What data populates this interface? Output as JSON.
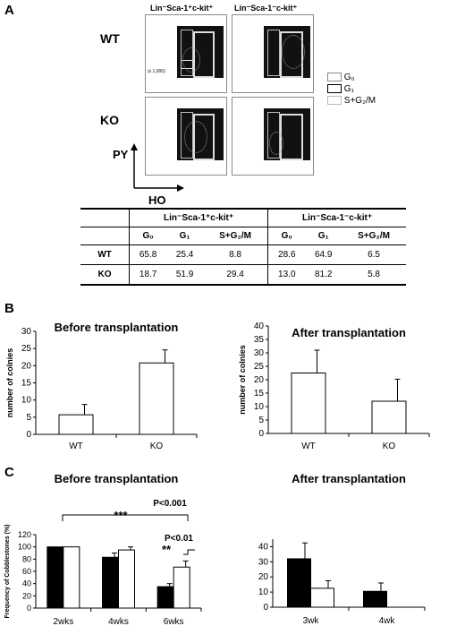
{
  "panel_a": {
    "letter": "A",
    "row_wt": "WT",
    "row_ko": "KO",
    "col1": "Lin⁻Sca-1⁺c-kit⁺",
    "col2": "Lin⁻Sca-1⁻c-kit⁺",
    "y_axis": "PY",
    "x_axis": "HO",
    "plot_axis_text": "(x 1,000)",
    "legend": [
      "G₀",
      "G₁",
      "S+G₂/M"
    ]
  },
  "table": {
    "header_groups": [
      "Lin⁻Sca-1⁺c-kit⁺",
      "Lin⁻Sca-1⁻c-kit⁺"
    ],
    "subheaders": [
      "G₀",
      "G₁",
      "S+G₂/M",
      "G₀",
      "G₁",
      "S+G₂/M"
    ],
    "rows": [
      {
        "label": "WT",
        "values": [
          "65.8",
          "25.4",
          "8.8",
          "28.6",
          "64.9",
          "6.5"
        ]
      },
      {
        "label": "KO",
        "values": [
          "18.7",
          "51.9",
          "29.4",
          "13.0",
          "81.2",
          "5.8"
        ]
      }
    ]
  },
  "panel_b": {
    "letter": "B"
  },
  "panel_c": {
    "letter": "C"
  },
  "chart_data": [
    {
      "id": "B-left",
      "type": "bar",
      "title": "Before transplantation",
      "ylabel": "number of colnies",
      "categories": [
        "WT",
        "KO"
      ],
      "values": [
        5.7,
        20.8
      ],
      "errors": [
        3.0,
        3.8
      ],
      "ylim": [
        0,
        30
      ],
      "yticks": [
        0,
        5,
        10,
        15,
        20,
        25,
        30
      ]
    },
    {
      "id": "B-right",
      "type": "bar",
      "title": "After transplantation",
      "ylabel": "number of colnies",
      "categories": [
        "WT",
        "KO"
      ],
      "values": [
        22.5,
        12.0
      ],
      "errors": [
        8.5,
        8.2
      ],
      "ylim": [
        0,
        40
      ],
      "yticks": [
        0,
        5,
        10,
        15,
        20,
        25,
        30,
        35,
        40
      ]
    },
    {
      "id": "C-left",
      "type": "bar",
      "title": "Before transplantation",
      "ylabel": "Frequency of Cobblestones (%)",
      "categories": [
        "2wks",
        "4wks",
        "6wks"
      ],
      "series": [
        {
          "color": "#000000",
          "values": [
            100,
            83,
            35
          ],
          "errors": [
            0,
            7,
            5
          ]
        },
        {
          "color": "#ffffff",
          "values": [
            100,
            95,
            67
          ],
          "errors": [
            0,
            5,
            10
          ]
        }
      ],
      "ylim": [
        0,
        120
      ],
      "yticks": [
        0,
        20,
        40,
        60,
        80,
        100,
        120
      ],
      "annotations": [
        "***",
        "P<0.001",
        "**",
        "P<0.01"
      ]
    },
    {
      "id": "C-right",
      "type": "bar",
      "title": "After transplantation",
      "categories": [
        "3wk",
        "4wk"
      ],
      "series": [
        {
          "color": "#000000",
          "values": [
            32,
            10.5
          ],
          "errors": [
            10.5,
            5.5
          ]
        },
        {
          "color": "#ffffff",
          "values": [
            12.5,
            0
          ],
          "errors": [
            5,
            0
          ]
        }
      ],
      "ylim": [
        0,
        45
      ],
      "yticks": [
        0,
        10,
        20,
        30,
        40
      ]
    }
  ]
}
